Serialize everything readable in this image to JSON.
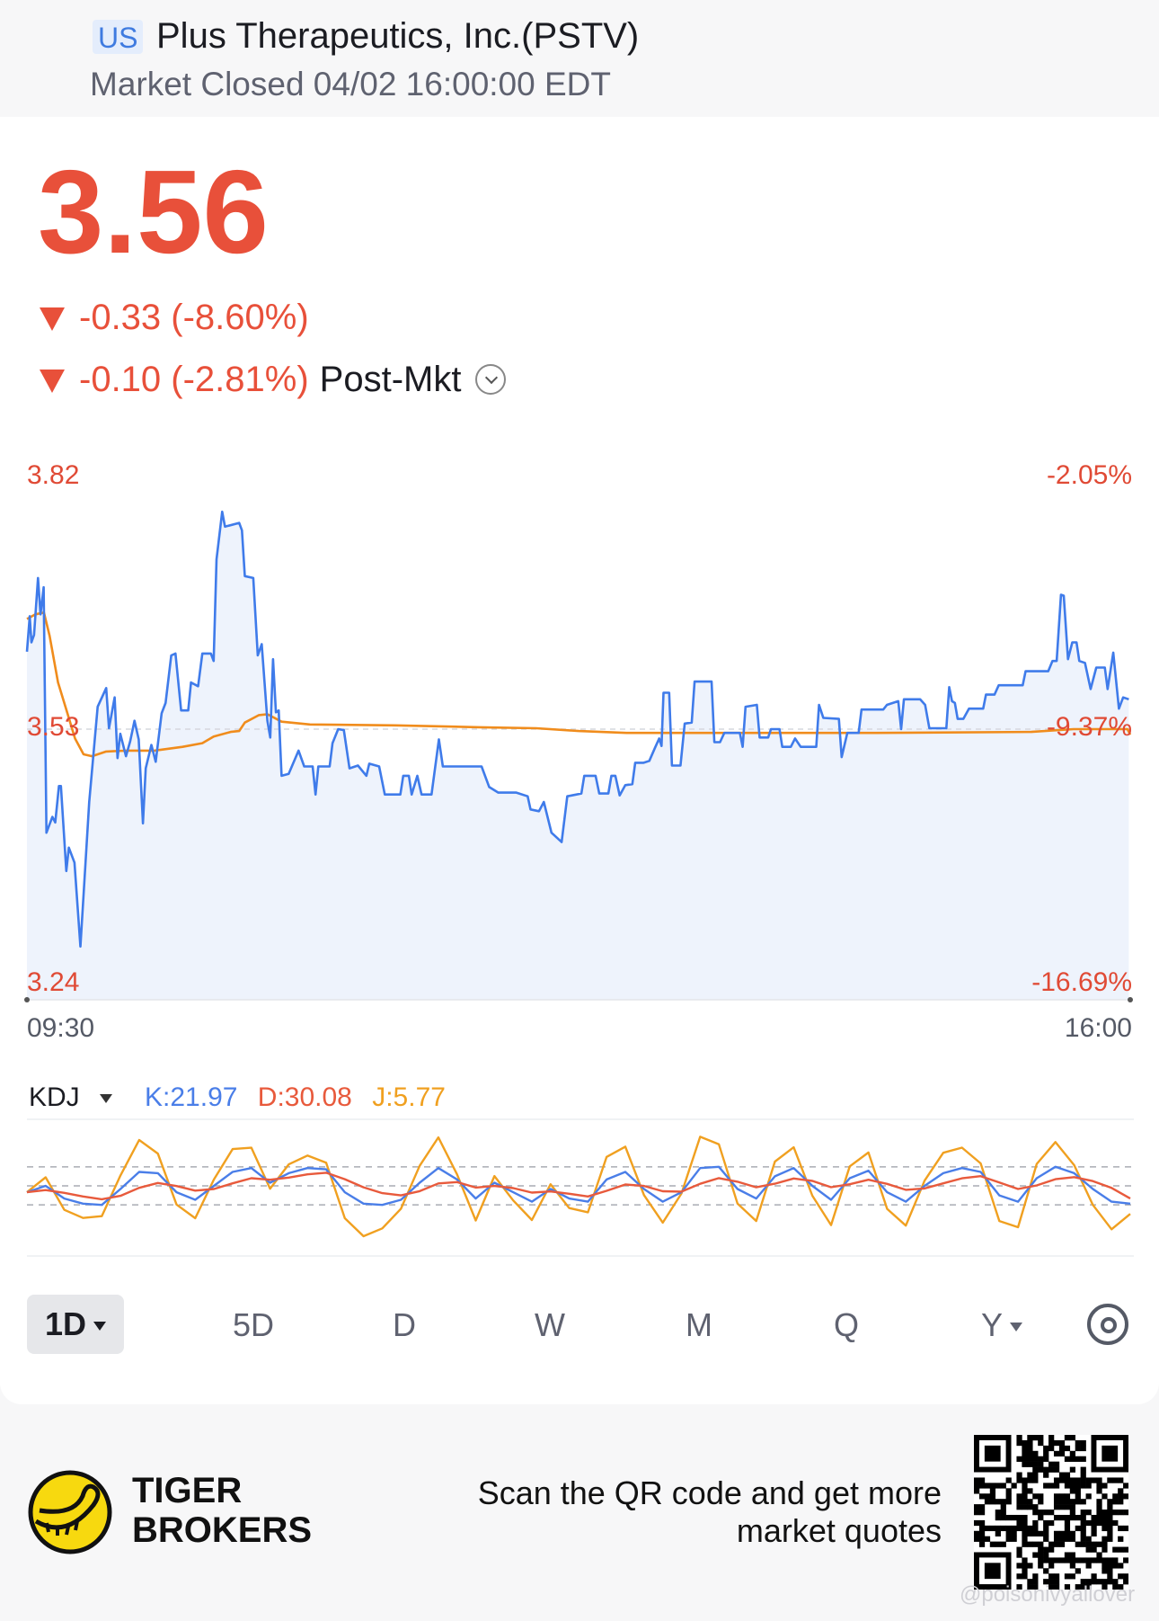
{
  "header": {
    "market_badge": "US",
    "title": "Plus Therapeutics, Inc.(PSTV)",
    "status": "Market Closed 04/02 16:00:00 EDT"
  },
  "quote": {
    "price": "3.56",
    "change": "-0.33 (-8.60%)",
    "post_change": "-0.10 (-2.81%)",
    "post_label": "Post-Mkt",
    "color_down": "#e8503a"
  },
  "chart_data": [
    {
      "type": "line",
      "title": "",
      "y_labels_left": [
        "3.82",
        "3.53",
        "3.24"
      ],
      "y_labels_right": [
        "-2.05%",
        "-9.37%",
        "-16.69%"
      ],
      "x_labels": [
        "09:30",
        "16:00"
      ],
      "ylim": [
        3.24,
        3.82
      ],
      "xlim_minutes": [
        0,
        390
      ],
      "reference_line": 3.53,
      "series": [
        {
          "color": "#3f7bea",
          "fill": "#eef3fc",
          "points": [
            [
              0,
              3.613
            ],
            [
              1,
              3.651
            ],
            [
              1.6,
              3.623
            ],
            [
              2.5,
              3.631
            ],
            [
              3.9,
              3.692
            ],
            [
              4.8,
              3.653
            ],
            [
              5.9,
              3.682
            ],
            [
              6.9,
              3.419
            ],
            [
              9,
              3.436
            ],
            [
              10,
              3.43
            ],
            [
              11.3,
              3.469
            ],
            [
              12,
              3.469
            ],
            [
              13.9,
              3.378
            ],
            [
              14.8,
              3.403
            ],
            [
              16.8,
              3.387
            ],
            [
              18.9,
              3.297
            ],
            [
              22,
              3.452
            ],
            [
              25,
              3.554
            ],
            [
              28,
              3.574
            ],
            [
              29,
              3.531
            ],
            [
              31,
              3.564
            ],
            [
              32,
              3.499
            ],
            [
              33,
              3.525
            ],
            [
              35,
              3.501
            ],
            [
              36.5,
              3.517
            ],
            [
              38,
              3.539
            ],
            [
              39.5,
              3.519
            ],
            [
              41,
              3.429
            ],
            [
              42,
              3.488
            ],
            [
              44,
              3.513
            ],
            [
              45.5,
              3.495
            ],
            [
              47.6,
              3.547
            ],
            [
              49,
              3.558
            ],
            [
              51,
              3.609
            ],
            [
              52.5,
              3.611
            ],
            [
              54.5,
              3.55
            ],
            [
              57,
              3.55
            ],
            [
              58,
              3.58
            ],
            [
              60.5,
              3.576
            ],
            [
              62,
              3.611
            ],
            [
              65,
              3.611
            ],
            [
              66,
              3.603
            ],
            [
              67,
              3.712
            ],
            [
              69,
              3.763
            ],
            [
              70,
              3.747
            ],
            [
              75,
              3.751
            ],
            [
              76,
              3.743
            ],
            [
              77,
              3.694
            ],
            [
              80,
              3.692
            ],
            [
              81.6,
              3.609
            ],
            [
              83,
              3.621
            ],
            [
              85,
              3.539
            ],
            [
              86,
              3.521
            ],
            [
              87,
              3.605
            ],
            [
              88,
              3.548
            ],
            [
              89,
              3.55
            ],
            [
              90,
              3.48
            ],
            [
              92.5,
              3.482
            ],
            [
              94.6,
              3.497
            ],
            [
              96,
              3.507
            ],
            [
              98,
              3.49
            ],
            [
              101,
              3.49
            ],
            [
              102,
              3.46
            ],
            [
              103,
              3.49
            ],
            [
              107,
              3.49
            ],
            [
              108,
              3.515
            ],
            [
              110,
              3.53
            ],
            [
              112,
              3.529
            ],
            [
              114,
              3.488
            ],
            [
              117,
              3.491
            ],
            [
              120,
              3.48
            ],
            [
              121,
              3.493
            ],
            [
              124.5,
              3.49
            ],
            [
              126.5,
              3.46
            ],
            [
              132,
              3.46
            ],
            [
              133,
              3.48
            ],
            [
              135,
              3.48
            ],
            [
              136,
              3.46
            ],
            [
              138,
              3.48
            ],
            [
              139.5,
              3.46
            ],
            [
              143,
              3.46
            ],
            [
              145.6,
              3.519
            ],
            [
              147,
              3.49
            ],
            [
              160.7,
              3.49
            ],
            [
              163.4,
              3.468
            ],
            [
              166.6,
              3.462
            ],
            [
              173,
              3.462
            ],
            [
              177,
              3.458
            ],
            [
              178,
              3.444
            ],
            [
              181,
              3.442
            ],
            [
              182.7,
              3.452
            ],
            [
              185.4,
              3.419
            ],
            [
              189,
              3.409
            ],
            [
              191,
              3.458
            ],
            [
              196,
              3.461
            ],
            [
              197,
              3.48
            ],
            [
              201,
              3.48
            ],
            [
              202.3,
              3.461
            ],
            [
              205.5,
              3.461
            ],
            [
              206.6,
              3.48
            ],
            [
              208,
              3.48
            ],
            [
              209.5,
              3.459
            ],
            [
              211.5,
              3.47
            ],
            [
              214,
              3.471
            ],
            [
              215,
              3.494
            ],
            [
              218,
              3.494
            ],
            [
              220,
              3.496
            ],
            [
              222,
              3.51
            ],
            [
              223.5,
              3.52
            ],
            [
              224.3,
              3.512
            ],
            [
              225,
              3.569
            ],
            [
              227,
              3.569
            ],
            [
              228,
              3.491
            ],
            [
              231,
              3.491
            ],
            [
              232.5,
              3.536
            ],
            [
              235,
              3.537
            ],
            [
              236,
              3.581
            ],
            [
              242,
              3.581
            ],
            [
              243,
              3.516
            ],
            [
              245,
              3.516
            ],
            [
              246.5,
              3.526
            ],
            [
              252,
              3.526
            ],
            [
              253,
              3.511
            ],
            [
              254,
              3.554
            ],
            [
              258,
              3.556
            ],
            [
              259,
              3.521
            ],
            [
              262,
              3.521
            ],
            [
              263,
              3.53
            ],
            [
              266,
              3.53
            ],
            [
              267,
              3.511
            ],
            [
              270,
              3.511
            ],
            [
              271.5,
              3.52
            ],
            [
              273.5,
              3.511
            ],
            [
              279,
              3.511
            ],
            [
              280,
              3.556
            ],
            [
              281.5,
              3.542
            ],
            [
              287,
              3.541
            ],
            [
              288,
              3.5
            ],
            [
              290,
              3.526
            ],
            [
              294,
              3.526
            ],
            [
              295,
              3.551
            ],
            [
              302.7,
              3.551
            ],
            [
              304,
              3.556
            ],
            [
              308,
              3.56
            ],
            [
              309,
              3.53
            ],
            [
              310,
              3.562
            ],
            [
              315.7,
              3.562
            ],
            [
              317.5,
              3.556
            ],
            [
              319,
              3.531
            ],
            [
              325,
              3.531
            ],
            [
              326,
              3.575
            ],
            [
              327,
              3.56
            ],
            [
              328,
              3.558
            ],
            [
              329,
              3.541
            ],
            [
              331,
              3.541
            ],
            [
              333,
              3.552
            ],
            [
              338,
              3.552
            ],
            [
              339,
              3.567
            ],
            [
              342,
              3.567
            ],
            [
              343.5,
              3.577
            ],
            [
              352,
              3.577
            ],
            [
              353,
              3.592
            ],
            [
              361,
              3.592
            ],
            [
              362.5,
              3.603
            ],
            [
              364,
              3.603
            ],
            [
              365.5,
              3.674
            ],
            [
              366.5,
              3.673
            ],
            [
              368,
              3.605
            ],
            [
              369.5,
              3.623
            ],
            [
              371,
              3.623
            ],
            [
              372,
              3.603
            ],
            [
              374,
              3.601
            ],
            [
              376,
              3.573
            ],
            [
              378,
              3.596
            ],
            [
              381,
              3.596
            ],
            [
              382,
              3.573
            ],
            [
              384,
              3.612
            ],
            [
              386,
              3.552
            ],
            [
              387.5,
              3.564
            ],
            [
              389.5,
              3.562
            ]
          ]
        },
        {
          "color": "#f08c1c",
          "points": [
            [
              0,
              3.648
            ],
            [
              3,
              3.653
            ],
            [
              6,
              3.655
            ],
            [
              8,
              3.63
            ],
            [
              11,
              3.58
            ],
            [
              14,
              3.55
            ],
            [
              17,
              3.52
            ],
            [
              20,
              3.503
            ],
            [
              23,
              3.501
            ],
            [
              28,
              3.506
            ],
            [
              35,
              3.507
            ],
            [
              45,
              3.507
            ],
            [
              55,
              3.511
            ],
            [
              62,
              3.515
            ],
            [
              66,
              3.522
            ],
            [
              72,
              3.527
            ],
            [
              75,
              3.528
            ],
            [
              77,
              3.537
            ],
            [
              82,
              3.545
            ],
            [
              85,
              3.546
            ],
            [
              90,
              3.538
            ],
            [
              100,
              3.535
            ],
            [
              130,
              3.534
            ],
            [
              160,
              3.532
            ],
            [
              180,
              3.531
            ],
            [
              195,
              3.528
            ],
            [
              212,
              3.526
            ],
            [
              260,
              3.526
            ],
            [
              300,
              3.526
            ],
            [
              355,
              3.527
            ],
            [
              370,
              3.53
            ],
            [
              389,
              3.53
            ],
            [
              390,
              3.524
            ]
          ]
        }
      ]
    },
    {
      "type": "line",
      "indicator": "KDJ",
      "legend": {
        "k": "K:21.97",
        "d": "D:30.08",
        "j": "J:5.77"
      },
      "reference_levels": [
        80,
        50,
        20
      ],
      "ylim": [
        -35,
        135
      ],
      "series": [
        {
          "name": "K",
          "color": "#4a7ee8",
          "values": [
            40,
            50,
            30,
            22,
            20,
            45,
            72,
            70,
            40,
            28,
            50,
            72,
            78,
            55,
            70,
            78,
            76,
            40,
            22,
            20,
            28,
            55,
            78,
            60,
            30,
            55,
            40,
            25,
            45,
            30,
            25,
            60,
            72,
            45,
            25,
            40,
            78,
            80,
            45,
            30,
            65,
            78,
            50,
            28,
            62,
            74,
            40,
            25,
            50,
            70,
            78,
            72,
            35,
            25,
            62,
            80,
            70,
            45,
            25,
            21.97
          ]
        },
        {
          "name": "D",
          "color": "#e85a3c",
          "values": [
            40,
            43.3,
            38.9,
            33.3,
            28.9,
            34.3,
            46.9,
            54.6,
            49.7,
            42.5,
            45,
            54,
            62,
            59.7,
            63.1,
            68.1,
            70.7,
            60.5,
            47.7,
            38.5,
            35,
            41.7,
            53.8,
            55.9,
            47.3,
            49.8,
            46.5,
            39.4,
            41.2,
            37.5,
            33.3,
            42.2,
            52.1,
            49.8,
            41.5,
            41,
            53.3,
            62.2,
            56.5,
            47.7,
            53.4,
            61.6,
            57.8,
            47.9,
            52.6,
            59.7,
            53.1,
            43.8,
            45.9,
            53.9,
            61.9,
            65.3,
            55.2,
            45.1,
            50.7,
            60.5,
            63.7,
            57.5,
            46.7,
            30.08
          ]
        },
        {
          "name": "J",
          "color": "#f0a020",
          "values": [
            40,
            63.4,
            12.2,
            -0.6,
            2.2,
            66.4,
            122.2,
            100.8,
            20.6,
            -1,
            60,
            108,
            110,
            45.6,
            83.8,
            97.8,
            86.6,
            -1,
            -29.4,
            -17,
            14,
            81.6,
            126.4,
            68.2,
            -4.6,
            65.4,
            27,
            -3.8,
            52.6,
            15,
            8.4,
            95.6,
            111.8,
            35.4,
            -8,
            38,
            127.4,
            115.6,
            22,
            -5.4,
            88.2,
            110.8,
            34.4,
            -11.8,
            80.8,
            102.6,
            13.8,
            -12.6,
            58.2,
            102.2,
            110.2,
            85.4,
            -5.4,
            -15.2,
            84.6,
            119,
            82.6,
            20,
            -18.4,
            5.77
          ]
        }
      ]
    }
  ],
  "tabs": [
    {
      "label": "1D",
      "active": true
    },
    {
      "label": "5D"
    },
    {
      "label": "D"
    },
    {
      "label": "W"
    },
    {
      "label": "M"
    },
    {
      "label": "Q"
    },
    {
      "label": "Y"
    }
  ],
  "footer": {
    "brand_line1": "TIGER",
    "brand_line2": "BROKERS",
    "scan_line1": "Scan the QR code and get more",
    "scan_line2": "market quotes",
    "watermark": "@poisonivyallover"
  },
  "colors": {
    "accent_blue": "#3f7bea",
    "down_red": "#e8503a",
    "vwap_orange": "#f08c1c",
    "logo_yellow": "#f7d90f"
  }
}
